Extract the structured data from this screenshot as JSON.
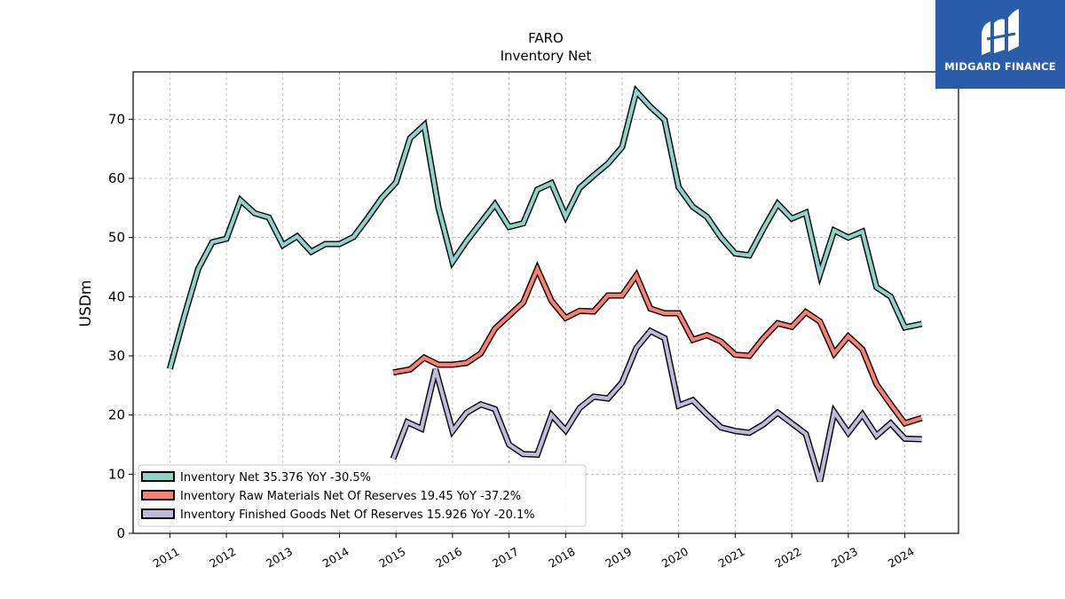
{
  "chart_data": {
    "type": "line",
    "title": "FARO",
    "subtitle": "Inventory Net",
    "xlabel": "",
    "ylabel": "USDm",
    "xlim": [
      2010.35,
      2024.95
    ],
    "ylim": [
      0,
      78
    ],
    "yticks": [
      0,
      10,
      20,
      30,
      40,
      50,
      60,
      70
    ],
    "xticks": [
      2011,
      2012,
      2013,
      2014,
      2015,
      2016,
      2017,
      2018,
      2019,
      2020,
      2021,
      2022,
      2023,
      2024
    ],
    "grid": true,
    "legend_position": "lower-left",
    "series": [
      {
        "name": "Inventory Net",
        "legend_label": "Inventory Net  35.376 YoY -30.5%",
        "color": "#8dd3c7",
        "points": [
          [
            2011.0,
            27.8
          ],
          [
            2011.25,
            36.5
          ],
          [
            2011.5,
            44.7
          ],
          [
            2011.75,
            49.2
          ],
          [
            2012.0,
            49.8
          ],
          [
            2012.25,
            56.3
          ],
          [
            2012.5,
            54.1
          ],
          [
            2012.75,
            53.4
          ],
          [
            2013.0,
            48.7
          ],
          [
            2013.25,
            50.2
          ],
          [
            2013.5,
            47.6
          ],
          [
            2013.75,
            48.9
          ],
          [
            2014.0,
            48.9
          ],
          [
            2014.25,
            50.1
          ],
          [
            2014.5,
            53.3
          ],
          [
            2014.75,
            56.7
          ],
          [
            2015.0,
            59.3
          ],
          [
            2015.25,
            66.8
          ],
          [
            2015.5,
            69.0
          ],
          [
            2015.75,
            55.1
          ],
          [
            2016.0,
            45.9
          ],
          [
            2016.25,
            49.4
          ],
          [
            2016.5,
            52.5
          ],
          [
            2016.75,
            55.6
          ],
          [
            2017.0,
            51.8
          ],
          [
            2017.25,
            52.4
          ],
          [
            2017.5,
            58.1
          ],
          [
            2017.75,
            59.2
          ],
          [
            2018.0,
            53.6
          ],
          [
            2018.25,
            58.4
          ],
          [
            2018.5,
            60.5
          ],
          [
            2018.75,
            62.5
          ],
          [
            2019.0,
            65.3
          ],
          [
            2019.25,
            74.7
          ],
          [
            2019.5,
            72.1
          ],
          [
            2019.75,
            69.9
          ],
          [
            2020.0,
            58.5
          ],
          [
            2020.25,
            55.2
          ],
          [
            2020.5,
            53.5
          ],
          [
            2020.75,
            50.0
          ],
          [
            2021.0,
            47.3
          ],
          [
            2021.25,
            47.0
          ],
          [
            2021.5,
            51.5
          ],
          [
            2021.75,
            55.7
          ],
          [
            2022.0,
            53.2
          ],
          [
            2022.25,
            54.2
          ],
          [
            2022.5,
            43.8
          ],
          [
            2022.75,
            51.2
          ],
          [
            2023.0,
            50.0
          ],
          [
            2023.25,
            51.0
          ],
          [
            2023.5,
            41.6
          ],
          [
            2023.75,
            40.0
          ],
          [
            2024.0,
            34.8
          ],
          [
            2024.3,
            35.4
          ]
        ]
      },
      {
        "name": "Inventory Raw Materials Net Of Reserves",
        "legend_label": "Inventory Raw Materials Net Of Reserves  19.45 YoY -37.2%",
        "color": "#fb8072",
        "points": [
          [
            2014.95,
            27.2
          ],
          [
            2015.25,
            27.7
          ],
          [
            2015.5,
            29.7
          ],
          [
            2015.75,
            28.5
          ],
          [
            2016.0,
            28.5
          ],
          [
            2016.25,
            28.8
          ],
          [
            2016.5,
            30.4
          ],
          [
            2016.75,
            34.6
          ],
          [
            2017.0,
            36.8
          ],
          [
            2017.25,
            39.0
          ],
          [
            2017.5,
            44.7
          ],
          [
            2017.75,
            39.3
          ],
          [
            2018.0,
            36.4
          ],
          [
            2018.25,
            37.6
          ],
          [
            2018.5,
            37.5
          ],
          [
            2018.75,
            40.2
          ],
          [
            2019.0,
            40.2
          ],
          [
            2019.25,
            43.6
          ],
          [
            2019.5,
            38.0
          ],
          [
            2019.75,
            37.2
          ],
          [
            2020.0,
            37.2
          ],
          [
            2020.25,
            32.7
          ],
          [
            2020.5,
            33.5
          ],
          [
            2020.75,
            32.4
          ],
          [
            2021.0,
            30.2
          ],
          [
            2021.25,
            30.0
          ],
          [
            2021.5,
            33.0
          ],
          [
            2021.75,
            35.5
          ],
          [
            2022.0,
            34.9
          ],
          [
            2022.25,
            37.4
          ],
          [
            2022.5,
            35.8
          ],
          [
            2022.75,
            30.4
          ],
          [
            2023.0,
            33.3
          ],
          [
            2023.25,
            31.1
          ],
          [
            2023.5,
            25.2
          ],
          [
            2023.75,
            21.8
          ],
          [
            2024.0,
            18.6
          ],
          [
            2024.3,
            19.5
          ]
        ]
      },
      {
        "name": "Inventory Finished Goods Net Of Reserves",
        "legend_label": "Inventory Finished Goods Net Of Reserves  15.926 YoY -20.1%",
        "color": "#bebada",
        "points": [
          [
            2014.95,
            12.6
          ],
          [
            2015.2,
            18.8
          ],
          [
            2015.45,
            17.7
          ],
          [
            2015.7,
            27.7
          ],
          [
            2016.0,
            17.3
          ],
          [
            2016.25,
            20.4
          ],
          [
            2016.5,
            21.8
          ],
          [
            2016.75,
            21.0
          ],
          [
            2017.0,
            15.0
          ],
          [
            2017.25,
            13.4
          ],
          [
            2017.5,
            13.3
          ],
          [
            2017.75,
            20.0
          ],
          [
            2018.0,
            17.4
          ],
          [
            2018.25,
            21.2
          ],
          [
            2018.5,
            23.1
          ],
          [
            2018.75,
            22.8
          ],
          [
            2019.0,
            25.5
          ],
          [
            2019.25,
            31.3
          ],
          [
            2019.5,
            34.2
          ],
          [
            2019.75,
            33.0
          ],
          [
            2020.0,
            21.6
          ],
          [
            2020.25,
            22.5
          ],
          [
            2020.5,
            20.1
          ],
          [
            2020.75,
            17.9
          ],
          [
            2021.0,
            17.3
          ],
          [
            2021.25,
            17.0
          ],
          [
            2021.5,
            18.4
          ],
          [
            2021.75,
            20.4
          ],
          [
            2022.0,
            18.6
          ],
          [
            2022.25,
            16.8
          ],
          [
            2022.5,
            8.8
          ],
          [
            2022.75,
            20.5
          ],
          [
            2023.0,
            17.0
          ],
          [
            2023.25,
            20.1
          ],
          [
            2023.5,
            16.5
          ],
          [
            2023.75,
            18.6
          ],
          [
            2024.0,
            16.0
          ],
          [
            2024.3,
            15.9
          ]
        ]
      }
    ]
  },
  "logo": {
    "text": "MIDGARD FINANCE",
    "color": "#2a5caa"
  }
}
